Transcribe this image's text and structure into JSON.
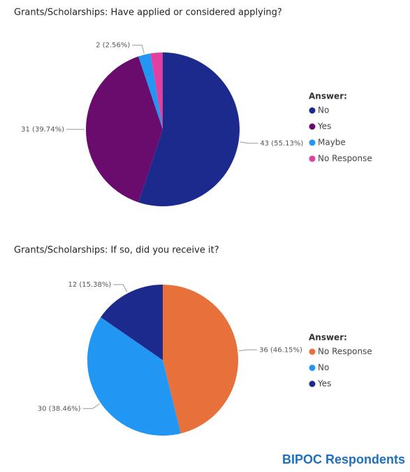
{
  "chart_data": [
    {
      "type": "pie",
      "title": "Grants/Scholarships: Have applied or considered applying?",
      "legend_title": "Answer:",
      "categories": [
        "No",
        "Yes",
        "Maybe",
        "No Response"
      ],
      "values": [
        43,
        31,
        2,
        2
      ],
      "value_labels": [
        "43 (55.13%)",
        "31 (39.74%)",
        "2 (2.56%)",
        null
      ],
      "colors": [
        "#1b2a8c",
        "#6a0b6e",
        "#2196f3",
        "#e040a0"
      ]
    },
    {
      "type": "pie",
      "title": "Grants/Scholarships: If so, did you receive it?",
      "legend_title": "Answer:",
      "categories": [
        "No Response",
        "No",
        "Yes"
      ],
      "values": [
        36,
        30,
        12
      ],
      "value_labels": [
        "36 (46.15%)",
        "30 (38.46%)",
        "12 (15.38%)"
      ],
      "colors": [
        "#e8703a",
        "#2196f3",
        "#1b2a8c"
      ]
    }
  ],
  "footer": "BIPOC Respondents"
}
